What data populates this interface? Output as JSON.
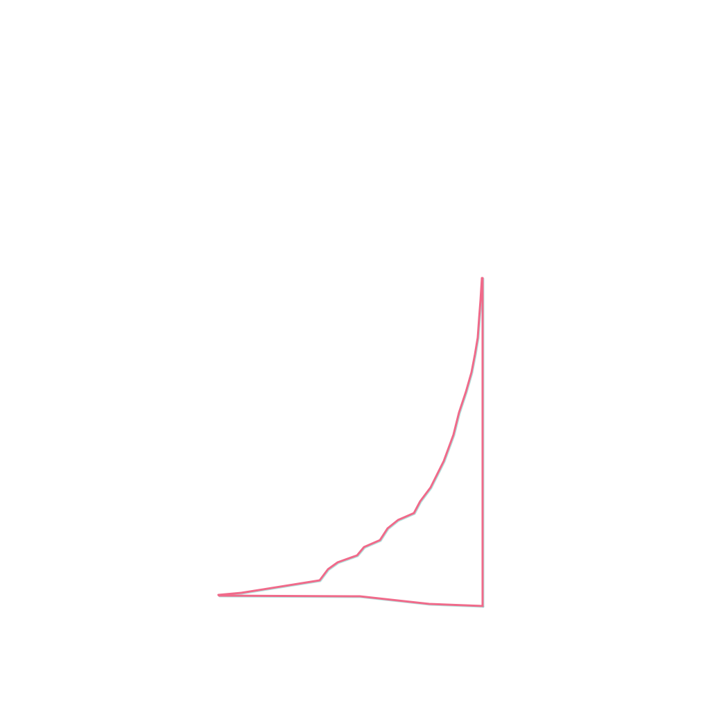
{
  "style": {
    "background": "#ffffff",
    "stroke_color": "#f06a8a",
    "shadow_color": "#7fd0c8"
  },
  "figure": {
    "shape": "curved-right-triangle-outline",
    "description_visible_text": ""
  }
}
